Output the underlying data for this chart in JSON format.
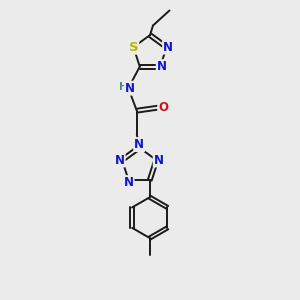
{
  "bg_color": "#ebebeb",
  "bond_color": "#1a1a1a",
  "N_color": "#1414cc",
  "O_color": "#cc1414",
  "S_color": "#b8b800",
  "H_color": "#4a8888",
  "font_size": 8.5,
  "bond_width": 1.4,
  "fig_w": 3.0,
  "fig_h": 3.0,
  "dpi": 100,
  "xlim": [
    0,
    6
  ],
  "ylim": [
    0,
    10
  ]
}
